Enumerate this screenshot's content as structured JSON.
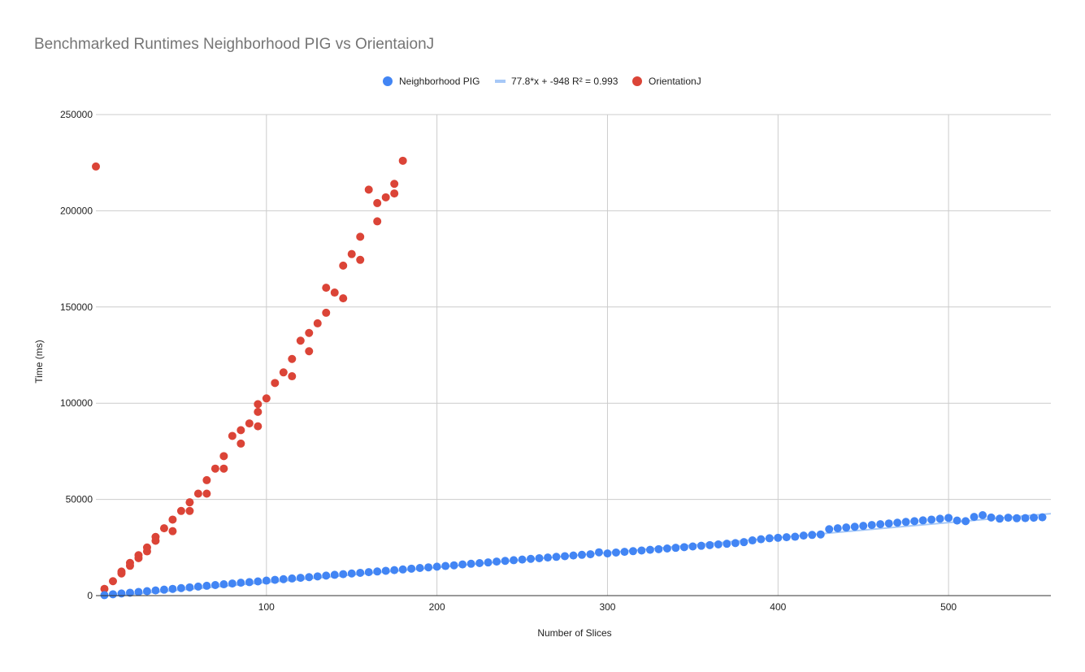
{
  "chart_data": {
    "type": "scatter",
    "title": "Benchmarked Runtimes Neighborhood PIG vs OrientaionJ",
    "xlabel": "Number of Slices",
    "ylabel": "Time (ms)",
    "xlim": [
      0,
      560
    ],
    "ylim": [
      0,
      250000
    ],
    "x_ticks": [
      100,
      200,
      300,
      400,
      500
    ],
    "y_ticks": [
      0,
      50000,
      100000,
      150000,
      200000,
      250000
    ],
    "grid": true,
    "legend_position": "top",
    "legend": [
      "Neighborhood PIG",
      "77.8*x + -948 R² = 0.993",
      "OrientationJ"
    ],
    "colors": {
      "pig": "#4285f4",
      "trend": "#a6c8f7",
      "orientationj": "#db4437",
      "grid": "#cccccc"
    },
    "trendline": {
      "label": "77.8*x + -948 R² = 0.993",
      "slope": 77.8,
      "intercept": -948,
      "x_range": [
        0,
        560
      ]
    },
    "series": [
      {
        "name": "Neighborhood PIG",
        "marker": "circle",
        "points": [
          [
            5,
            250
          ],
          [
            10,
            700
          ],
          [
            15,
            1100
          ],
          [
            20,
            1500
          ],
          [
            25,
            1900
          ],
          [
            30,
            2300
          ],
          [
            35,
            2700
          ],
          [
            40,
            3100
          ],
          [
            45,
            3500
          ],
          [
            50,
            3900
          ],
          [
            55,
            4300
          ],
          [
            60,
            4700
          ],
          [
            65,
            5100
          ],
          [
            70,
            5500
          ],
          [
            75,
            5900
          ],
          [
            80,
            6300
          ],
          [
            85,
            6700
          ],
          [
            90,
            7000
          ],
          [
            95,
            7400
          ],
          [
            100,
            7800
          ],
          [
            105,
            8200
          ],
          [
            110,
            8550
          ],
          [
            115,
            8900
          ],
          [
            120,
            9250
          ],
          [
            125,
            9600
          ],
          [
            130,
            10000
          ],
          [
            135,
            10400
          ],
          [
            140,
            10800
          ],
          [
            145,
            11150
          ],
          [
            150,
            11500
          ],
          [
            155,
            11850
          ],
          [
            160,
            12200
          ],
          [
            165,
            12550
          ],
          [
            170,
            12900
          ],
          [
            175,
            13250
          ],
          [
            180,
            13600
          ],
          [
            185,
            14000
          ],
          [
            190,
            14350
          ],
          [
            195,
            14700
          ],
          [
            200,
            15050
          ],
          [
            205,
            15400
          ],
          [
            210,
            15750
          ],
          [
            215,
            16200
          ],
          [
            220,
            16550
          ],
          [
            225,
            16900
          ],
          [
            230,
            17250
          ],
          [
            235,
            17700
          ],
          [
            240,
            18050
          ],
          [
            245,
            18400
          ],
          [
            250,
            18750
          ],
          [
            255,
            19100
          ],
          [
            260,
            19450
          ],
          [
            265,
            19800
          ],
          [
            270,
            20150
          ],
          [
            275,
            20500
          ],
          [
            280,
            20850
          ],
          [
            285,
            21200
          ],
          [
            290,
            21500
          ],
          [
            295,
            22500
          ],
          [
            300,
            21900
          ],
          [
            305,
            22400
          ],
          [
            310,
            22750
          ],
          [
            315,
            23100
          ],
          [
            320,
            23450
          ],
          [
            325,
            23800
          ],
          [
            330,
            24150
          ],
          [
            335,
            24500
          ],
          [
            340,
            24850
          ],
          [
            345,
            25200
          ],
          [
            350,
            25550
          ],
          [
            355,
            25900
          ],
          [
            360,
            26250
          ],
          [
            365,
            26600
          ],
          [
            370,
            26950
          ],
          [
            375,
            27300
          ],
          [
            380,
            27800
          ],
          [
            385,
            28700
          ],
          [
            390,
            29300
          ],
          [
            395,
            29800
          ],
          [
            400,
            30050
          ],
          [
            405,
            30350
          ],
          [
            410,
            30600
          ],
          [
            415,
            31200
          ],
          [
            420,
            31550
          ],
          [
            425,
            31800
          ],
          [
            430,
            34500
          ],
          [
            435,
            35000
          ],
          [
            440,
            35400
          ],
          [
            445,
            35800
          ],
          [
            450,
            36250
          ],
          [
            455,
            36700
          ],
          [
            460,
            37100
          ],
          [
            465,
            37500
          ],
          [
            470,
            37900
          ],
          [
            475,
            38300
          ],
          [
            480,
            38700
          ],
          [
            485,
            39100
          ],
          [
            490,
            39500
          ],
          [
            495,
            39950
          ],
          [
            500,
            40400
          ],
          [
            505,
            39000
          ],
          [
            510,
            38700
          ],
          [
            515,
            40900
          ],
          [
            520,
            41800
          ],
          [
            525,
            40600
          ],
          [
            530,
            40000
          ],
          [
            535,
            40500
          ],
          [
            540,
            40200
          ],
          [
            545,
            40300
          ],
          [
            550,
            40500
          ],
          [
            555,
            40700
          ]
        ]
      },
      {
        "name": "OrientationJ",
        "marker": "circle",
        "points": [
          [
            0,
            223000
          ],
          [
            5,
            3500
          ],
          [
            10,
            7500
          ],
          [
            15,
            11500
          ],
          [
            15,
            12500
          ],
          [
            20,
            15500
          ],
          [
            20,
            17000
          ],
          [
            25,
            19500
          ],
          [
            25,
            21000
          ],
          [
            30,
            23000
          ],
          [
            30,
            25000
          ],
          [
            35,
            28500
          ],
          [
            35,
            30500
          ],
          [
            40,
            35000
          ],
          [
            45,
            33500
          ],
          [
            45,
            39500
          ],
          [
            50,
            44000
          ],
          [
            55,
            44000
          ],
          [
            55,
            48500
          ],
          [
            60,
            53000
          ],
          [
            65,
            53000
          ],
          [
            65,
            60000
          ],
          [
            70,
            66000
          ],
          [
            75,
            66000
          ],
          [
            75,
            72500
          ],
          [
            80,
            83000
          ],
          [
            85,
            79000
          ],
          [
            85,
            86000
          ],
          [
            90,
            89500
          ],
          [
            95,
            88000
          ],
          [
            95,
            95500
          ],
          [
            95,
            99500
          ],
          [
            100,
            102500
          ],
          [
            105,
            110500
          ],
          [
            110,
            116000
          ],
          [
            115,
            114000
          ],
          [
            115,
            123000
          ],
          [
            120,
            132500
          ],
          [
            125,
            127000
          ],
          [
            125,
            136500
          ],
          [
            130,
            141500
          ],
          [
            135,
            147000
          ],
          [
            135,
            160000
          ],
          [
            140,
            157500
          ],
          [
            145,
            154500
          ],
          [
            145,
            171500
          ],
          [
            150,
            177500
          ],
          [
            155,
            174500
          ],
          [
            155,
            186500
          ],
          [
            160,
            211000
          ],
          [
            165,
            194500
          ],
          [
            165,
            204000
          ],
          [
            170,
            207000
          ],
          [
            175,
            209000
          ],
          [
            175,
            214000
          ],
          [
            180,
            226000
          ]
        ]
      }
    ]
  }
}
